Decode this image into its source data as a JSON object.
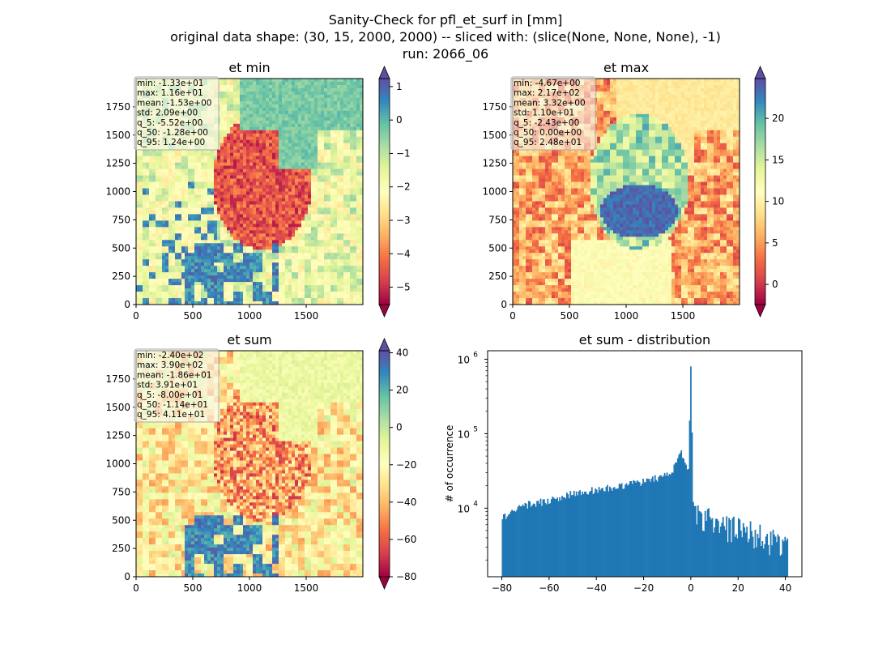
{
  "suptitle": [
    "Sanity-Check for pfl_et_surf in [mm]",
    "original data shape: (30, 15, 2000, 2000) -- sliced with: (slice(None, None, None), -1)",
    "run: 2066_06"
  ],
  "colors": {
    "spectral": [
      "#9e0142",
      "#d53e4f",
      "#f46d43",
      "#fdae61",
      "#fee08b",
      "#ffffbf",
      "#e6f598",
      "#abdda4",
      "#66c2a5",
      "#3288bd",
      "#5e4fa2"
    ],
    "hist_bar": "#1f77b4"
  },
  "chart_data": [
    {
      "type": "heatmap",
      "title": "et min",
      "xlim": [
        0,
        2000
      ],
      "ylim": [
        0,
        2000
      ],
      "x_ticks": [
        0,
        500,
        1000,
        1500
      ],
      "y_ticks": [
        0,
        250,
        500,
        750,
        1000,
        1250,
        1500,
        1750
      ],
      "colorbar": {
        "min": -5.52,
        "max": 1.24,
        "ticks": [
          1,
          0,
          -1,
          -2,
          -3,
          -4,
          -5
        ]
      },
      "stats": [
        "min: -1.33e+01",
        "max: 1.16e+01",
        "mean: -1.53e+00",
        "std: 2.09e+00",
        "q_5: -5.52e+00",
        "q_50: -1.28e+00",
        "q_95: 1.24e+00"
      ]
    },
    {
      "type": "heatmap",
      "title": "et max",
      "xlim": [
        0,
        2000
      ],
      "ylim": [
        0,
        2000
      ],
      "x_ticks": [
        0,
        500,
        1000,
        1500
      ],
      "y_ticks": [
        0,
        250,
        500,
        750,
        1000,
        1250,
        1500,
        1750
      ],
      "colorbar": {
        "min": -2.43,
        "max": 24.8,
        "ticks": [
          20,
          15,
          10,
          5,
          0
        ]
      },
      "stats": [
        "min: -4.67e+00",
        "max: 2.17e+02",
        "mean: 3.32e+00",
        "std: 1.10e+01",
        "q_5: -2.43e+00",
        "q_50: 0.00e+00",
        "q_95: 2.48e+01"
      ]
    },
    {
      "type": "heatmap",
      "title": "et sum",
      "xlim": [
        0,
        2000
      ],
      "ylim": [
        0,
        2000
      ],
      "x_ticks": [
        0,
        500,
        1000,
        1500
      ],
      "y_ticks": [
        0,
        250,
        500,
        750,
        1000,
        1250,
        1500,
        1750
      ],
      "colorbar": {
        "min": -80.0,
        "max": 41.1,
        "ticks": [
          40,
          20,
          0,
          -20,
          -40,
          -60,
          -80
        ]
      },
      "stats": [
        "min: -2.40e+02",
        "max: 3.90e+02",
        "mean: -1.86e+01",
        "std: 3.91e+01",
        "q_5: -8.00e+01",
        "q_50: -1.14e+01",
        "q_95: 4.11e+01"
      ]
    },
    {
      "type": "bar",
      "title": "et sum - distribution",
      "ylabel": "# of occurrence",
      "yscale": "log",
      "xlim": [
        -86,
        47
      ],
      "ylim": [
        1200,
        1300000
      ],
      "x_ticks": [
        -80,
        -60,
        -40,
        -20,
        0,
        20,
        40
      ],
      "y_ticks": [
        {
          "value": 10000,
          "label": "10"
        },
        {
          "value": 100000,
          "label": "10"
        },
        {
          "value": 1000000,
          "label": "10"
        }
      ],
      "y_tick_exponents": [
        "4",
        "5",
        "6"
      ],
      "bin_range": [
        -80,
        41.1
      ],
      "anchor_counts": [
        [
          -80,
          7500
        ],
        [
          -75,
          9200
        ],
        [
          -70,
          11000
        ],
        [
          -60,
          12600
        ],
        [
          -50,
          15500
        ],
        [
          -40,
          17500
        ],
        [
          -30,
          20000
        ],
        [
          -20,
          23000
        ],
        [
          -12,
          26000
        ],
        [
          -8,
          32000
        ],
        [
          -6,
          40000
        ],
        [
          -4,
          60000
        ],
        [
          -3,
          45000
        ],
        [
          -1,
          35000
        ],
        [
          0,
          820000
        ],
        [
          1,
          11000
        ],
        [
          5,
          8500
        ],
        [
          10,
          6700
        ],
        [
          20,
          5500
        ],
        [
          30,
          4200
        ],
        [
          41,
          3000
        ]
      ]
    }
  ]
}
